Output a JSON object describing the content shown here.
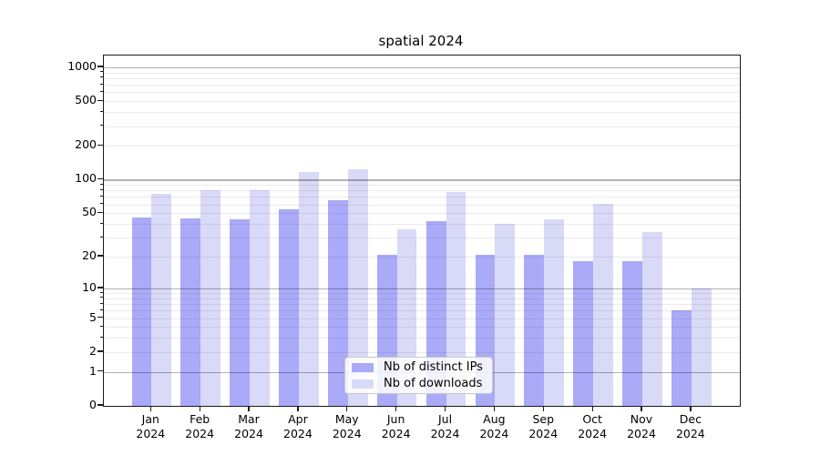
{
  "title": "spatial 2024",
  "colors": {
    "ips_bar": "#aaaaf8",
    "downloads_bar": "#d9d9f8",
    "grid_major": "rgba(0,0,0,0.30)",
    "grid_minor": "rgba(0,0,0,0.08)",
    "spine": "#1a1a1a",
    "legend_border": "#c8c8c8",
    "legend_bg": "rgba(255,255,255,0.85)",
    "text": "#000000"
  },
  "y_axis": {
    "tick_labels": [
      "0",
      "1",
      "2",
      "5",
      "10",
      "20",
      "50",
      "100",
      "200",
      "500",
      "1000"
    ]
  },
  "x_axis": {
    "months": [
      "Jan",
      "Feb",
      "Mar",
      "Apr",
      "May",
      "Jun",
      "Jul",
      "Aug",
      "Sep",
      "Oct",
      "Nov",
      "Dec"
    ],
    "year": "2024"
  },
  "legend": {
    "items": [
      {
        "label": "Nb of distinct IPs"
      },
      {
        "label": "Nb of downloads"
      }
    ]
  },
  "chart_data": {
    "type": "bar",
    "title": "spatial 2024",
    "categories": [
      "Jan 2024",
      "Feb 2024",
      "Mar 2024",
      "Apr 2024",
      "May 2024",
      "Jun 2024",
      "Jul 2024",
      "Aug 2024",
      "Sep 2024",
      "Oct 2024",
      "Nov 2024",
      "Dec 2024"
    ],
    "series": [
      {
        "name": "Nb of distinct IPs",
        "color": "#aaaaf8",
        "values": [
          46,
          45,
          44,
          54,
          65,
          21,
          42,
          21,
          21,
          18,
          18,
          6
        ]
      },
      {
        "name": "Nb of downloads",
        "color": "#d9d9f8",
        "values": [
          74,
          81,
          81,
          117,
          125,
          36,
          78,
          40,
          44,
          61,
          34,
          10
        ]
      }
    ],
    "yscale": "log1p",
    "y_ticks": [
      0,
      1,
      2,
      5,
      10,
      20,
      50,
      100,
      200,
      500,
      1000
    ],
    "ylim": [
      0,
      1270
    ],
    "grid": true,
    "legend_position": "lower center"
  }
}
